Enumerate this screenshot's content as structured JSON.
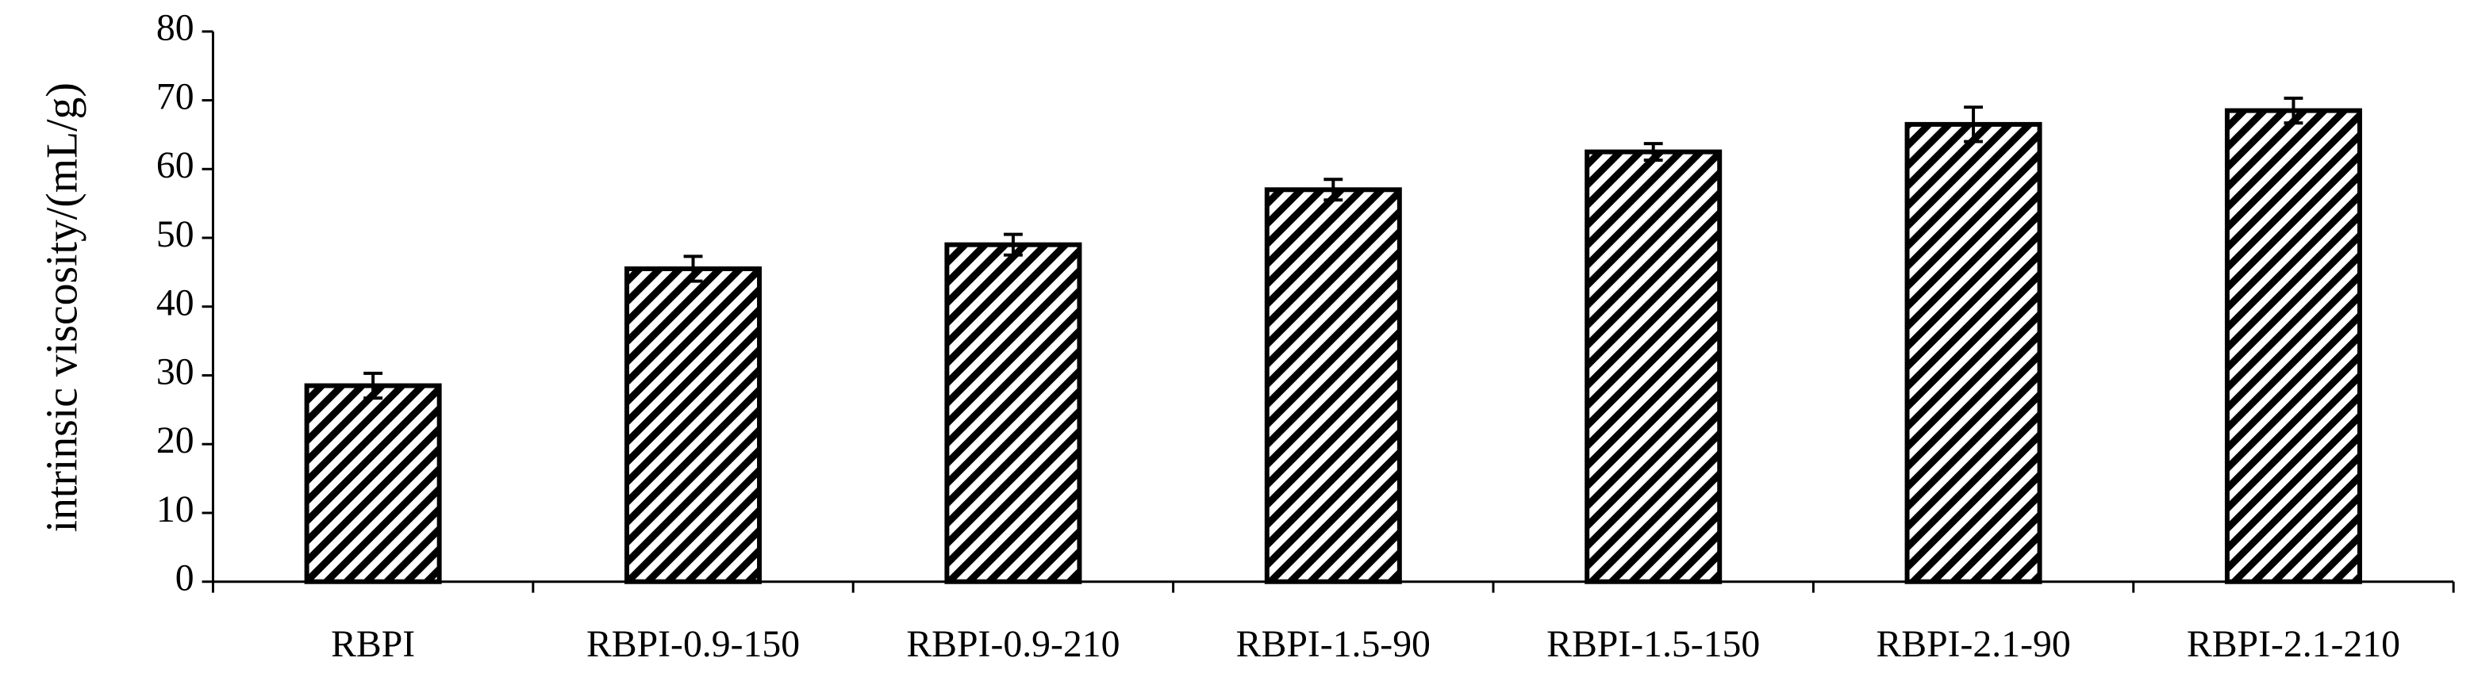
{
  "chart_data": {
    "type": "bar",
    "ylabel": "intrinsic viscosity/(mL/g)",
    "categories": [
      "RBPI",
      "RBPI-0.9-150",
      "RBPI-0.9-210",
      "RBPI-1.5-90",
      "RBPI-1.5-150",
      "RBPI-2.1-90",
      "RBPI-2.1-210"
    ],
    "values": [
      28.5,
      45.5,
      49,
      57,
      62.5,
      66.5,
      68.5
    ],
    "errors": [
      1.8,
      1.8,
      1.5,
      1.5,
      1.2,
      2.5,
      1.8
    ],
    "color": "#000000",
    "ylim": [
      0,
      80
    ],
    "yticks": [
      0,
      10,
      20,
      30,
      40,
      50,
      60,
      70,
      80
    ],
    "grid": false
  }
}
